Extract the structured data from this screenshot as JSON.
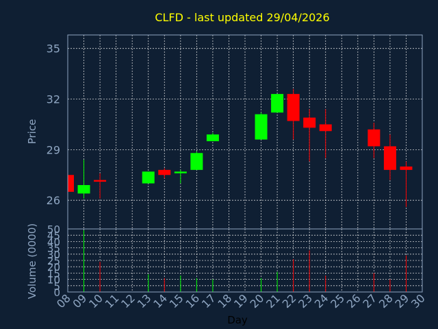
{
  "chart_data": {
    "type": "candlestick",
    "title": "CLFD - last updated 29/04/2026",
    "xlabel": "Day",
    "price_ylabel": "Price",
    "volume_ylabel": "Volume (0000)",
    "x_ticks": [
      "08",
      "09",
      "10",
      "11",
      "12",
      "13",
      "14",
      "15",
      "16",
      "17",
      "18",
      "19",
      "20",
      "21",
      "22",
      "23",
      "24",
      "25",
      "26",
      "27",
      "28",
      "29",
      "30"
    ],
    "price_ylim": [
      24.3,
      35.8
    ],
    "price_yticks": [
      26,
      29,
      32,
      35
    ],
    "volume_ylim": [
      0,
      50
    ],
    "volume_yticks": [
      0,
      5,
      10,
      15,
      20,
      25,
      30,
      35,
      40,
      45,
      50
    ],
    "grid": true,
    "colors": {
      "up": "#00ff00",
      "down": "#ff0000",
      "background": "#0f1f33",
      "axis": "#8fa6c2",
      "title": "#ffff00",
      "grid": "#e6e6e6"
    },
    "candles": [
      {
        "day": "08",
        "open": 27.5,
        "high": 27.5,
        "low": 26.5,
        "close": 26.5,
        "volume": 0
      },
      {
        "day": "09",
        "open": 26.4,
        "high": 28.4,
        "low": 26.1,
        "close": 26.9,
        "volume": 49
      },
      {
        "day": "10",
        "open": 27.2,
        "high": 27.6,
        "low": 26.1,
        "close": 27.1,
        "volume": 24
      },
      {
        "day": "13",
        "open": 27.0,
        "high": 27.7,
        "low": 27.0,
        "close": 27.7,
        "volume": 14
      },
      {
        "day": "14",
        "open": 27.8,
        "high": 27.9,
        "low": 27.3,
        "close": 27.5,
        "volume": 11
      },
      {
        "day": "15",
        "open": 27.6,
        "high": 27.8,
        "low": 27.0,
        "close": 27.7,
        "volume": 13
      },
      {
        "day": "16",
        "open": 27.8,
        "high": 28.9,
        "low": 27.8,
        "close": 28.8,
        "volume": 11
      },
      {
        "day": "17",
        "open": 29.5,
        "high": 30.0,
        "low": 29.5,
        "close": 29.9,
        "volume": 10
      },
      {
        "day": "20",
        "open": 29.6,
        "high": 31.2,
        "low": 29.6,
        "close": 31.1,
        "volume": 11
      },
      {
        "day": "21",
        "open": 31.2,
        "high": 32.3,
        "low": 31.2,
        "close": 32.3,
        "volume": 16
      },
      {
        "day": "22",
        "open": 32.3,
        "high": 32.6,
        "low": 29.6,
        "close": 30.7,
        "volume": 26
      },
      {
        "day": "23",
        "open": 30.9,
        "high": 31.4,
        "low": 28.3,
        "close": 30.3,
        "volume": 33
      },
      {
        "day": "24",
        "open": 30.5,
        "high": 31.4,
        "low": 28.5,
        "close": 30.1,
        "volume": 13
      },
      {
        "day": "27",
        "open": 30.2,
        "high": 30.6,
        "low": 28.5,
        "close": 29.2,
        "volume": 15
      },
      {
        "day": "28",
        "open": 29.2,
        "high": 29.9,
        "low": 27.2,
        "close": 27.8,
        "volume": 10
      },
      {
        "day": "29",
        "open": 28.0,
        "high": 28.3,
        "low": 25.6,
        "close": 27.8,
        "volume": 29
      }
    ]
  }
}
